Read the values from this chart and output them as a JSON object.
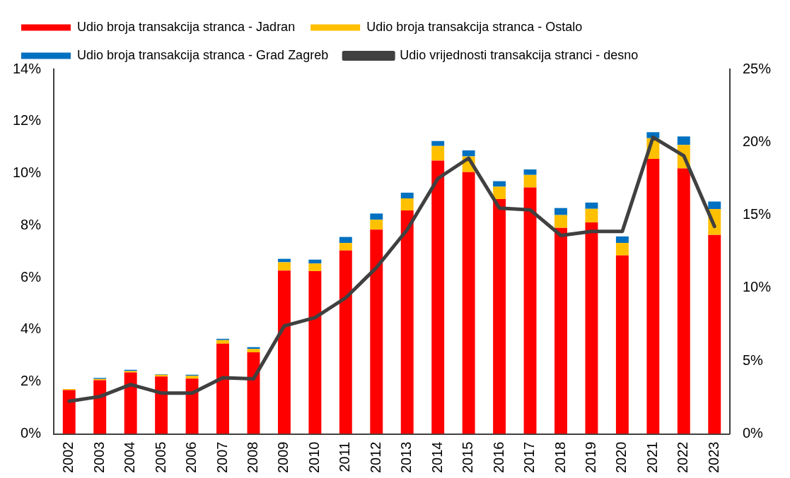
{
  "chart_data": {
    "type": "bar",
    "stacked": true,
    "categories": [
      "2002",
      "2003",
      "2004",
      "2005",
      "2006",
      "2007",
      "2008",
      "2009",
      "2010",
      "2011",
      "2012",
      "2013",
      "2014",
      "2015",
      "2016",
      "2017",
      "2018",
      "2019",
      "2020",
      "2021",
      "2022",
      "2023"
    ],
    "series": [
      {
        "name": "Udio broja transakcija stranca - Jadran",
        "color": "#ff0000",
        "values": [
          1.68,
          2.06,
          2.36,
          2.2,
          2.12,
          3.46,
          3.13,
          6.27,
          6.25,
          7.04,
          7.84,
          8.58,
          10.49,
          10.05,
          9.01,
          9.46,
          7.91,
          8.12,
          6.85,
          10.56,
          10.19,
          7.64
        ]
      },
      {
        "name": "Udio broja transakcija stranca - Ostalo",
        "color": "#ffc000",
        "values": [
          0.04,
          0.05,
          0.05,
          0.07,
          0.11,
          0.14,
          0.13,
          0.32,
          0.29,
          0.29,
          0.38,
          0.46,
          0.56,
          0.6,
          0.48,
          0.48,
          0.49,
          0.52,
          0.48,
          0.79,
          0.9,
          0.99
        ]
      },
      {
        "name": "Udio broja transakcija stranca - Grad Zagreb",
        "color": "#0070c0",
        "values": [
          0,
          0.04,
          0.05,
          0.02,
          0.04,
          0.05,
          0.07,
          0.13,
          0.15,
          0.23,
          0.24,
          0.22,
          0.19,
          0.23,
          0.21,
          0.21,
          0.27,
          0.24,
          0.25,
          0.23,
          0.33,
          0.29
        ]
      },
      {
        "name": "Udio vrijednosti transakcija stranci - desno",
        "type": "line",
        "axis": "y2",
        "color": "#404040",
        "marker": "none",
        "values": [
          2.24,
          2.56,
          3.38,
          2.8,
          2.8,
          3.85,
          3.77,
          7.4,
          7.97,
          9.33,
          11.4,
          14.0,
          17.51,
          18.9,
          15.48,
          15.36,
          13.6,
          13.88,
          13.88,
          20.34,
          19.07,
          14.22
        ]
      }
    ],
    "ylim": [
      0,
      14
    ],
    "yticks": [
      {
        "value": 0,
        "label": "0%"
      },
      {
        "value": 2,
        "label": "2%"
      },
      {
        "value": 4,
        "label": "4%"
      },
      {
        "value": 6,
        "label": "6%"
      },
      {
        "value": 8,
        "label": "8%"
      },
      {
        "value": 10,
        "label": "10%"
      },
      {
        "value": 12,
        "label": "12%"
      },
      {
        "value": 14,
        "label": "14%"
      }
    ],
    "y2lim": [
      0,
      25
    ],
    "y2ticks": [
      {
        "value": 0,
        "label": "0%"
      },
      {
        "value": 5,
        "label": "5%"
      },
      {
        "value": 10,
        "label": "10%"
      },
      {
        "value": 15,
        "label": "15%"
      },
      {
        "value": 20,
        "label": "20%"
      },
      {
        "value": 25,
        "label": "25%"
      }
    ],
    "grid": false,
    "legend": "top"
  }
}
